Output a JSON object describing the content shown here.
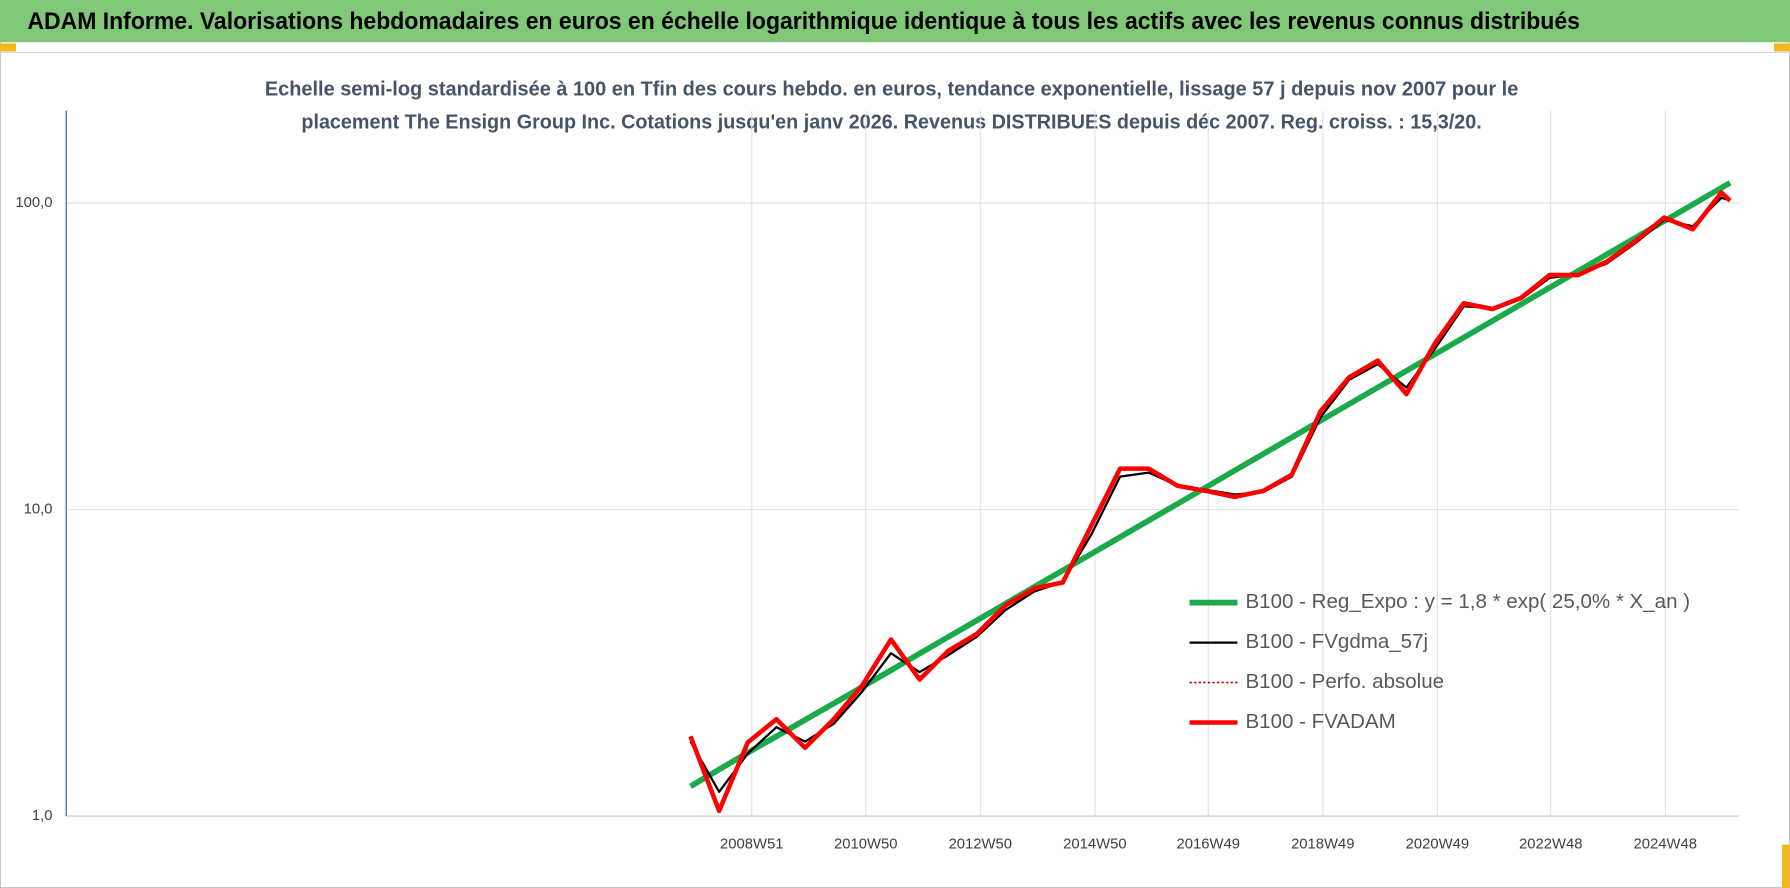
{
  "chart_data": {
    "type": "line",
    "title": "ADAM Informe. Valorisations hebdomadaires en euros en échelle logarithmique identique à tous les actifs avec les revenus connus distribués",
    "subtitle": [
      "Echelle semi-log standardisée à 100 en Tfin des cours hebdo. en euros, tendance exponentielle, lissage 57 j depuis nov 2007 pour le",
      "placement The Ensign Group Inc. Cotations jusqu'en janv 2026. Revenus DISTRIBUES depuis déc 2007. Reg. croiss. : 15,3/20."
    ],
    "x": [
      2007.9,
      2008.4,
      2008.9,
      2009.4,
      2009.9,
      2010.4,
      2010.9,
      2011.4,
      2011.9,
      2012.4,
      2012.9,
      2013.4,
      2013.9,
      2014.4,
      2014.9,
      2015.4,
      2015.9,
      2016.4,
      2016.9,
      2017.4,
      2017.9,
      2018.4,
      2018.9,
      2019.4,
      2019.9,
      2020.4,
      2020.9,
      2021.4,
      2021.9,
      2022.4,
      2022.9,
      2023.4,
      2023.9,
      2024.4,
      2024.9,
      2025.4,
      2025.9,
      2026.05
    ],
    "series": [
      {
        "name": "B100 - Reg_Expo : y = 1,8 * exp( 25,0% *  X_an )",
        "color": "#1aaa4a",
        "width": 5,
        "dash": "none",
        "values": [
          1.25,
          1.42,
          1.61,
          1.82,
          2.06,
          2.33,
          2.64,
          2.99,
          3.39,
          3.84,
          4.35,
          4.93,
          5.59,
          6.33,
          7.17,
          8.13,
          9.21,
          10.43,
          11.82,
          13.4,
          15.18,
          17.2,
          19.49,
          22.08,
          25.02,
          28.35,
          32.12,
          36.4,
          41.24,
          46.73,
          52.95,
          60.0,
          67.98,
          77.03,
          87.29,
          98.91,
          112.07,
          116.4
        ]
      },
      {
        "name": "B100 - FVgdma_57j",
        "color": "#000000",
        "width": 2,
        "dash": "none",
        "values": [
          1.75,
          1.2,
          1.6,
          1.95,
          1.75,
          2.0,
          2.55,
          3.4,
          2.95,
          3.35,
          3.85,
          4.7,
          5.4,
          5.8,
          8.3,
          12.8,
          13.2,
          12.0,
          11.6,
          11.2,
          11.4,
          12.8,
          20.0,
          26.5,
          29.8,
          25.0,
          33.5,
          46.0,
          45.5,
          48.5,
          57.0,
          58.5,
          63.5,
          74.0,
          88.0,
          84.0,
          104.0,
          102.0
        ]
      },
      {
        "name": "B100 - Perfo. absolue",
        "color": "#c00000",
        "width": 1.5,
        "dash": "2,2",
        "values": [
          1.82,
          1.04,
          1.74,
          2.07,
          1.67,
          2.07,
          2.67,
          3.77,
          2.79,
          3.46,
          3.93,
          4.87,
          5.53,
          5.78,
          8.87,
          13.6,
          13.6,
          11.96,
          11.5,
          11.0,
          11.5,
          13.0,
          20.9,
          27.0,
          30.6,
          23.8,
          34.9,
          47.1,
          45.1,
          49.0,
          58.2,
          58.2,
          64.4,
          75.1,
          89.6,
          82.1,
          108.2,
          101.8
        ]
      },
      {
        "name": "B100 - FVADAM",
        "color": "#ff0000",
        "width": 4,
        "dash": "none",
        "values": [
          1.82,
          1.04,
          1.74,
          2.07,
          1.67,
          2.07,
          2.67,
          3.77,
          2.79,
          3.46,
          3.93,
          4.87,
          5.53,
          5.78,
          8.87,
          13.6,
          13.6,
          11.96,
          11.5,
          11.0,
          11.5,
          13.0,
          20.9,
          27.0,
          30.6,
          23.8,
          34.9,
          47.1,
          45.1,
          49.0,
          58.2,
          58.2,
          64.4,
          75.1,
          89.6,
          82.1,
          108.2,
          101.8
        ]
      }
    ],
    "xlim": [
      1997.0,
      2026.2
    ],
    "xticks": [
      {
        "value": 2008.97,
        "label": "2008W51"
      },
      {
        "value": 2010.96,
        "label": "2010W50"
      },
      {
        "value": 2012.96,
        "label": "2012W50"
      },
      {
        "value": 2014.96,
        "label": "2014W50"
      },
      {
        "value": 2016.94,
        "label": "2016W49"
      },
      {
        "value": 2018.94,
        "label": "2018W49"
      },
      {
        "value": 2020.94,
        "label": "2020W49"
      },
      {
        "value": 2022.92,
        "label": "2022W48"
      },
      {
        "value": 2024.92,
        "label": "2024W48"
      }
    ],
    "ylim": [
      1,
      200
    ],
    "yticks": [
      {
        "value": 1,
        "label": "1,0"
      },
      {
        "value": 10,
        "label": "10,0"
      },
      {
        "value": 100,
        "label": "100,0"
      }
    ],
    "log_y": true,
    "grid": true,
    "legend": "right"
  }
}
